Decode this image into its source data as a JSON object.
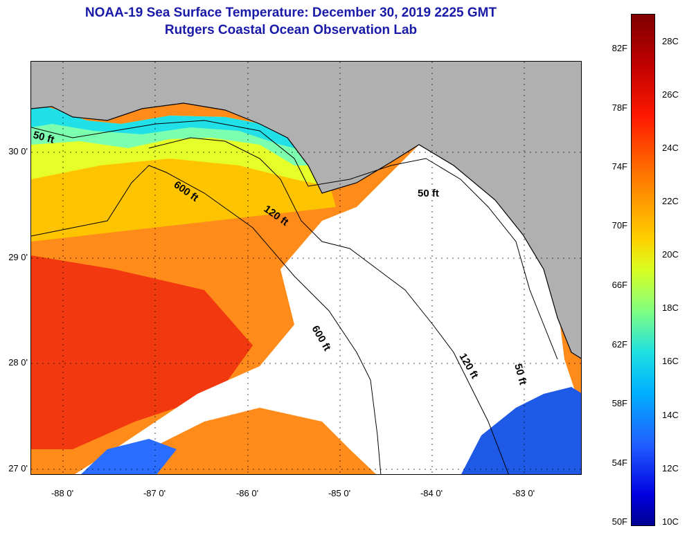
{
  "title": {
    "line1": "NOAA-19 Sea Surface Temperature:  December 30, 2019 2225 GMT",
    "line2": "Rutgers Coastal Ocean Observation Lab"
  },
  "map": {
    "latitude_labels": [
      "30 0'",
      "29 0'",
      "28 0'",
      "27 0'"
    ],
    "longitude_labels": [
      "-88 0'",
      "-87 0'",
      "-86 0'",
      "-85 0'",
      "-84 0'",
      "-83 0'"
    ],
    "land_color": "#b0b0b0",
    "cloud_color": "#ffffff",
    "isobath_labels": [
      "50 ft",
      "600 ft",
      "120 ft",
      "50 ft",
      "600 ft",
      "120 ft",
      "50 ft"
    ]
  },
  "colorbar": {
    "fahrenheit_labels": [
      "82F",
      "78F",
      "74F",
      "70F",
      "66F",
      "62F",
      "58F",
      "54F",
      "50F"
    ],
    "celsius_labels": [
      "28C",
      "26C",
      "24C",
      "22C",
      "20C",
      "18C",
      "16C",
      "14C",
      "12C",
      "10C"
    ],
    "range_celsius": [
      10,
      29.5
    ]
  }
}
